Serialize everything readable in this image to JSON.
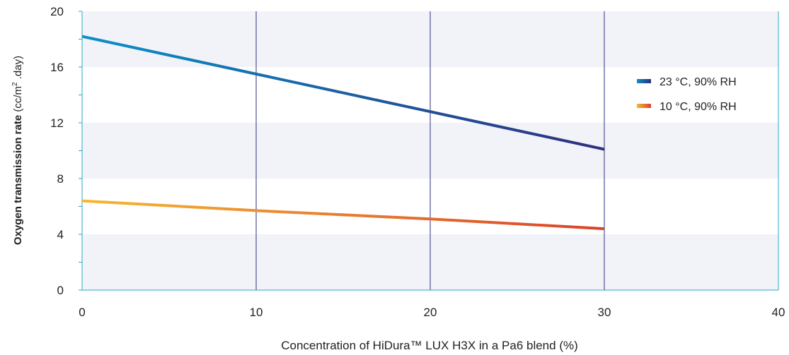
{
  "chart_data": {
    "type": "line",
    "title": "",
    "x": [
      0,
      10,
      20,
      30
    ],
    "xlim": [
      0,
      40
    ],
    "ylim": [
      0,
      20
    ],
    "x_ticks": [
      "0",
      "10",
      "20",
      "30",
      "40"
    ],
    "y_ticks": [
      "0",
      "4",
      "8",
      "12",
      "16",
      "20"
    ],
    "xlabel": "Concentration of HiDura™ LUX H3X in a Pa6 blend (%)",
    "ylabel": {
      "bold": "Oxygen transmission rate",
      "unit_pre": " (cc/m",
      "unit_sup": "2",
      "unit_post": " .day)"
    },
    "series": [
      {
        "name": "23 °C, 90% RH",
        "values": [
          18.2,
          15.5,
          12.8,
          10.1
        ],
        "color_start": "#0a90c8",
        "color_end": "#2e2f7f"
      },
      {
        "name": "10 °C, 90% RH",
        "values": [
          6.4,
          5.7,
          5.1,
          4.4
        ],
        "color_start": "#f7b733",
        "color_end": "#d9432a"
      }
    ],
    "legend_position": "right",
    "band_color": "#f2f3f9",
    "gridline_color": "#2e2f7f",
    "axis_color": "#29a8c8"
  }
}
